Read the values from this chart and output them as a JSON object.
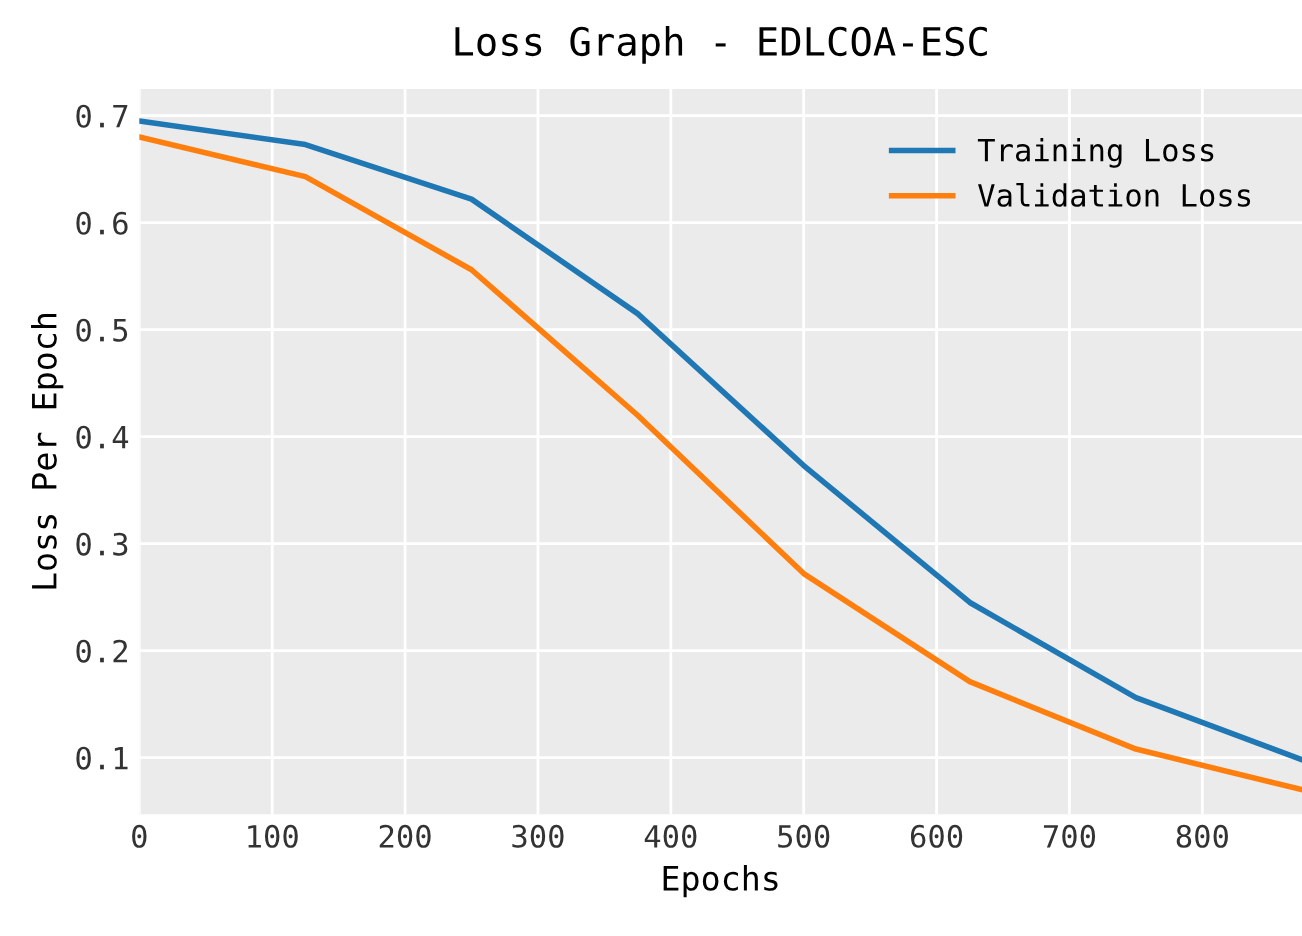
{
  "chart_data": {
    "type": "line",
    "title": "Loss Graph - EDLCOA-ESC",
    "xlabel": "Epochs",
    "ylabel": "Loss Per Epoch",
    "x": [
      0,
      125,
      250,
      375,
      500,
      625,
      750,
      875
    ],
    "series": [
      {
        "name": "Training Loss",
        "color": "#1f77b4",
        "values": [
          0.695,
          0.673,
          0.622,
          0.515,
          0.373,
          0.245,
          0.156,
          0.098
        ]
      },
      {
        "name": "Validation Loss",
        "color": "#ff7f0e",
        "values": [
          0.68,
          0.643,
          0.556,
          0.42,
          0.272,
          0.171,
          0.108,
          0.07
        ]
      }
    ],
    "xlim": [
      0,
      875
    ],
    "ylim": [
      0.047,
      0.725
    ],
    "xticks": [
      0,
      100,
      200,
      300,
      400,
      500,
      600,
      700,
      800
    ],
    "yticks": [
      0.1,
      0.2,
      0.3,
      0.4,
      0.5,
      0.6,
      0.7
    ],
    "grid": true,
    "legend": "top right",
    "line_style": "solid",
    "marker": "none"
  }
}
